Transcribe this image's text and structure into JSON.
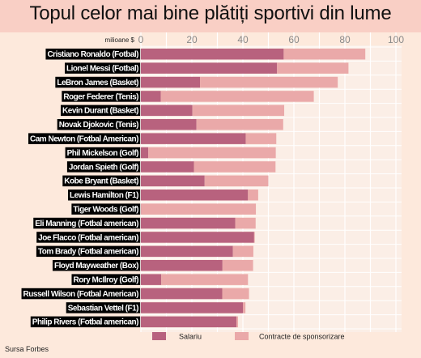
{
  "title": "Topul celor mai bine plătiți sportivi din lume",
  "source": "Sursa Forbes",
  "colors": {
    "salary": "#b8627e",
    "endorsement": "#eaa9a9",
    "label_bg": "#000000",
    "label_text": "#ffffff",
    "plot_bg": "#fbeee6",
    "grid": "#ffffff"
  },
  "chart_data": {
    "type": "bar",
    "orientation": "horizontal",
    "stacked": true,
    "unit_label": "milioane $",
    "xlim": [
      0,
      100
    ],
    "xticks": [
      0,
      20,
      40,
      60,
      80,
      100
    ],
    "grid": true,
    "legend_position": "bottom",
    "categories": [
      "Cristiano Ronaldo (Fotbal)",
      "Lionel Messi (Fotbal)",
      "LeBron James (Basket)",
      "Roger Federer (Tenis)",
      "Kevin Durant (Basket)",
      "Novak Djokovic (Tenis)",
      "Cam Newton (Fotbal American)",
      "Phil Mickelson (Golf)",
      "Jordan Spieth (Golf)",
      "Kobe Bryant (Basket)",
      "Lewis Hamilton (F1)",
      "Tiger Woods (Golf)",
      "Eli Manning (Fotbal american)",
      "Joe Flacco (Fotbal american)",
      "Tom Brady (Fotbal american)",
      "Floyd Mayweather (Box)",
      "Rory McIlroy (Golf)",
      "Russell Wilson (Fotbal American)",
      "Sebastian Vettel (F1)",
      "Philip Rivers (Fotbal american)"
    ],
    "series": [
      {
        "name": "Salariu",
        "color": "#b8627e",
        "values": [
          56,
          53.4,
          23.2,
          7.8,
          20.2,
          21.8,
          41.1,
          2.9,
          20.8,
          25,
          42,
          0.1,
          37,
          44.4,
          36.1,
          32,
          8,
          31.9,
          40,
          37.5
        ]
      },
      {
        "name": "Contracte de sponsorizare",
        "color": "#eaa9a9",
        "values": [
          32,
          28,
          54,
          60,
          36,
          34,
          12,
          50,
          32,
          25,
          4,
          45,
          8,
          0.25,
          8,
          12,
          34,
          10.5,
          1,
          0.6
        ]
      }
    ]
  }
}
